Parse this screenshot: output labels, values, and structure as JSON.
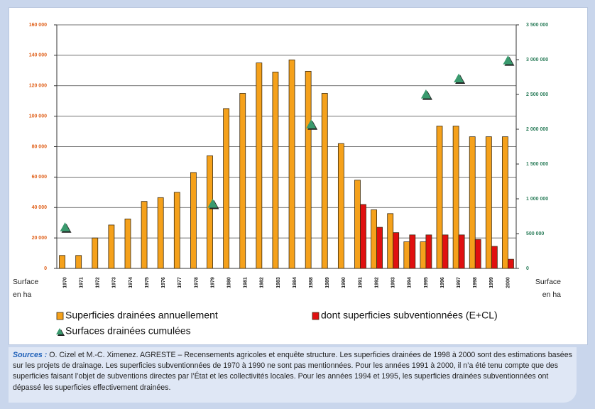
{
  "chart_data": {
    "type": "bar",
    "categories": [
      "1970",
      "1971",
      "1972",
      "1973",
      "1974",
      "1975",
      "1976",
      "1977",
      "1978",
      "1979",
      "1980",
      "1981",
      "1982",
      "1983",
      "1984",
      "1988",
      "1989",
      "1990",
      "1991",
      "1992",
      "1993",
      "1994",
      "1995",
      "1996",
      "1997",
      "1998",
      "1999",
      "2000"
    ],
    "series": [
      {
        "name": "Superficies drainées annuellement",
        "color": "#f5a11b",
        "values": [
          8500,
          8500,
          20000,
          28500,
          32500,
          44000,
          46500,
          50000,
          63000,
          74000,
          105000,
          115000,
          135000,
          129000,
          137000,
          129500,
          115000,
          82000,
          58000,
          38500,
          36000,
          17500,
          17500,
          93500,
          93500,
          86500,
          86500,
          86500
        ]
      },
      {
        "name": "dont superficies subventionnées (E+CL)",
        "color": "#e01010",
        "values": [
          null,
          null,
          null,
          null,
          null,
          null,
          null,
          null,
          null,
          null,
          null,
          null,
          null,
          null,
          null,
          null,
          null,
          null,
          42000,
          27000,
          23500,
          22000,
          22000,
          22000,
          22000,
          19000,
          14500,
          6000
        ]
      },
      {
        "name": "Surfaces drainées cumulées",
        "color": "#3a9a6e",
        "axis": "y2",
        "marker": "triangle",
        "values": [
          590000,
          null,
          null,
          null,
          null,
          null,
          null,
          null,
          null,
          930000,
          null,
          null,
          null,
          null,
          null,
          2070000,
          null,
          null,
          null,
          null,
          null,
          null,
          2500000,
          null,
          2730000,
          null,
          null,
          2990000
        ]
      }
    ],
    "ylim": [
      0,
      160000
    ],
    "yticks": [
      0,
      {
        "value": 20000,
        "label": "20 000"
      },
      {
        "value": 40000,
        "label": "40 000"
      },
      {
        "value": 60000,
        "label": "60 000"
      },
      {
        "value": 80000,
        "label": "80 000"
      },
      {
        "value": 100000,
        "label": "100 000"
      },
      {
        "value": 120000,
        "label": "120 000"
      },
      {
        "value": 140000,
        "label": "140 000"
      },
      {
        "value": 160000,
        "label": "160 000"
      }
    ],
    "y2lim": [
      0,
      3500000
    ],
    "y2ticks": [
      0,
      {
        "value": 500000,
        "label": "500 000"
      },
      {
        "value": 1000000,
        "label": "1 000 000"
      },
      {
        "value": 1500000,
        "label": "1 500 000"
      },
      {
        "value": 2000000,
        "label": "2 000 000"
      },
      {
        "value": 2500000,
        "label": "2 500 000"
      },
      {
        "value": 3000000,
        "label": "3 000 000"
      },
      {
        "value": 3500000,
        "label": "3 500 000"
      }
    ],
    "ylabel_lines": [
      "Surface",
      "en ha"
    ],
    "y2label_lines": [
      "Surface",
      "en ha"
    ],
    "grid": true
  },
  "source": {
    "label": "Sources :",
    "text": "O. Cizel et M.-C. Ximenez. AGRESTE – Recensements agricoles et enquête structure. Les superficies drainées de 1998 à 2000 sont des estimations basées sur les projets de drainage. Les superficies subventionnées de 1970 à 1990 ne sont pas mentionnées. Pour les années 1991 à 2000, il n’a été tenu compte que des superficies faisant l’objet de subventions directes par l’État et les collectivités locales. Pour les années 1994 et 1995, les superficies drainées subventionnées ont dépassé les superficies effectivement drainées."
  }
}
